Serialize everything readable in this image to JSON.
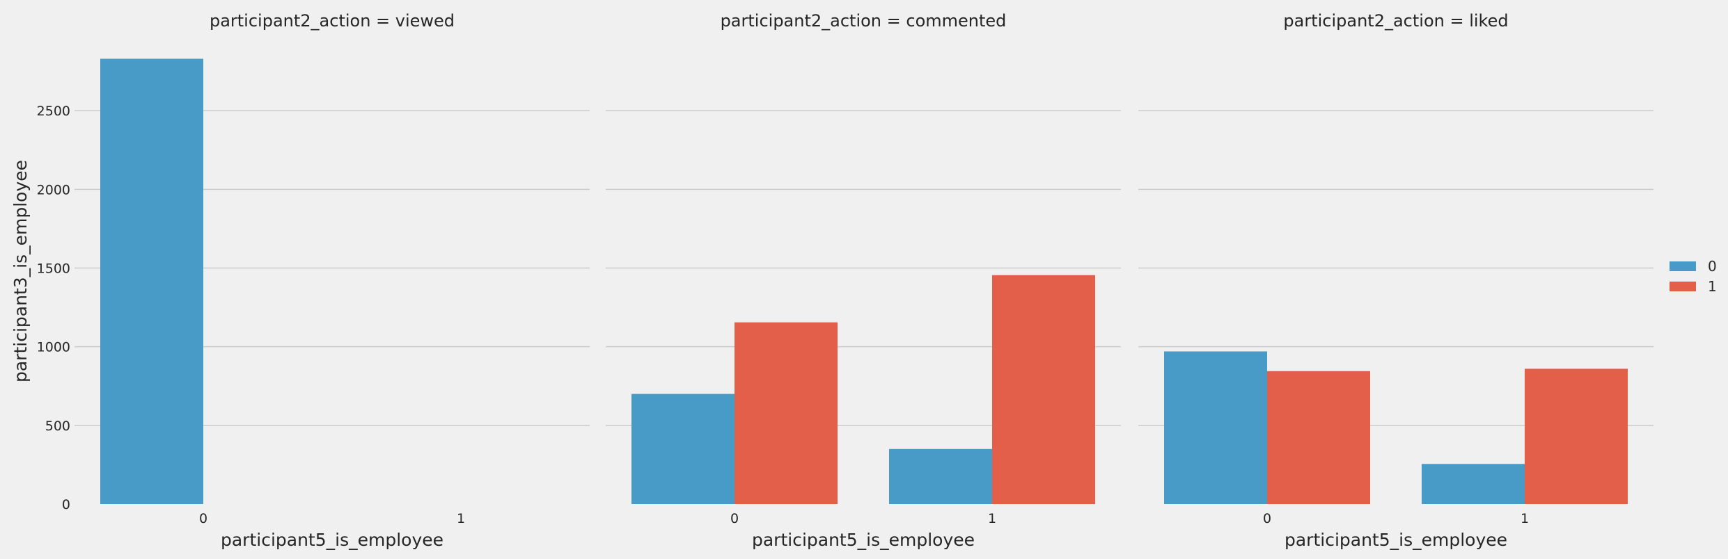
{
  "colors": {
    "background": "#f0f0f0",
    "grid": "#cbcbcb",
    "series_0": "#479bc6",
    "series_1": "#e45f4a",
    "text": "#262626"
  },
  "chart_data": {
    "type": "bar",
    "layout": "faceted",
    "ylabel": "participant3_is_employee",
    "xlabel": "participant5_is_employee",
    "ylim": [
      0,
      2850
    ],
    "yticks": [
      0,
      500,
      1000,
      1500,
      2000,
      2500
    ],
    "categories": [
      "0",
      "1"
    ],
    "grid": "horizontal",
    "legend": {
      "placement": "right",
      "entries": [
        "0",
        "1"
      ]
    },
    "panels": [
      {
        "title": "participant2_action = viewed",
        "series": [
          {
            "name": "0",
            "values": [
              2830,
              0
            ]
          },
          {
            "name": "1",
            "values": [
              0,
              0
            ]
          }
        ]
      },
      {
        "title": "participant2_action = commented",
        "series": [
          {
            "name": "0",
            "values": [
              700,
              350
            ]
          },
          {
            "name": "1",
            "values": [
              1155,
              1455
            ]
          }
        ]
      },
      {
        "title": "participant2_action = liked",
        "series": [
          {
            "name": "0",
            "values": [
              970,
              255
            ]
          },
          {
            "name": "1",
            "values": [
              845,
              860
            ]
          }
        ]
      }
    ]
  }
}
